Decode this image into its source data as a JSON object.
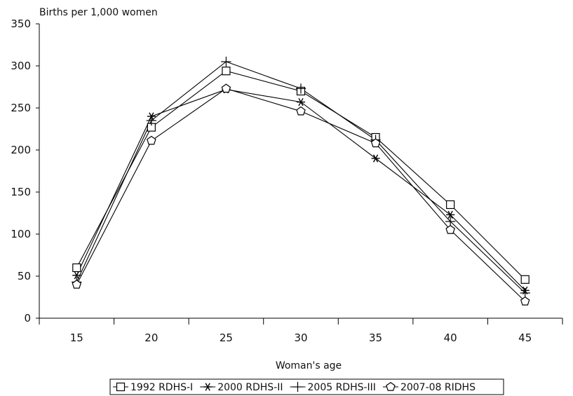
{
  "chart_data": {
    "type": "line",
    "ylabel": "Births per 1,000 women",
    "xlabel": "Woman's age",
    "x": [
      15,
      20,
      25,
      30,
      35,
      40,
      45
    ],
    "xlim": [
      12.5,
      47.5
    ],
    "ylim": [
      0,
      350
    ],
    "yticks": [
      0,
      50,
      100,
      150,
      200,
      250,
      300,
      350
    ],
    "grid": false,
    "legend_position": "bottom",
    "series": [
      {
        "name": "1992 RDHS-I",
        "marker": "square",
        "values": [
          60,
          227,
          294,
          270,
          215,
          135,
          46
        ]
      },
      {
        "name": "2000 RDHS-II",
        "marker": "asterisk",
        "values": [
          51,
          240,
          272,
          257,
          190,
          123,
          33
        ]
      },
      {
        "name": "2005 RDHS-III",
        "marker": "plus",
        "values": [
          43,
          235,
          305,
          273,
          212,
          115,
          30
        ]
      },
      {
        "name": "2007-08 RIDHS",
        "marker": "pentagon",
        "values": [
          40,
          211,
          273,
          246,
          208,
          105,
          20
        ]
      }
    ]
  }
}
